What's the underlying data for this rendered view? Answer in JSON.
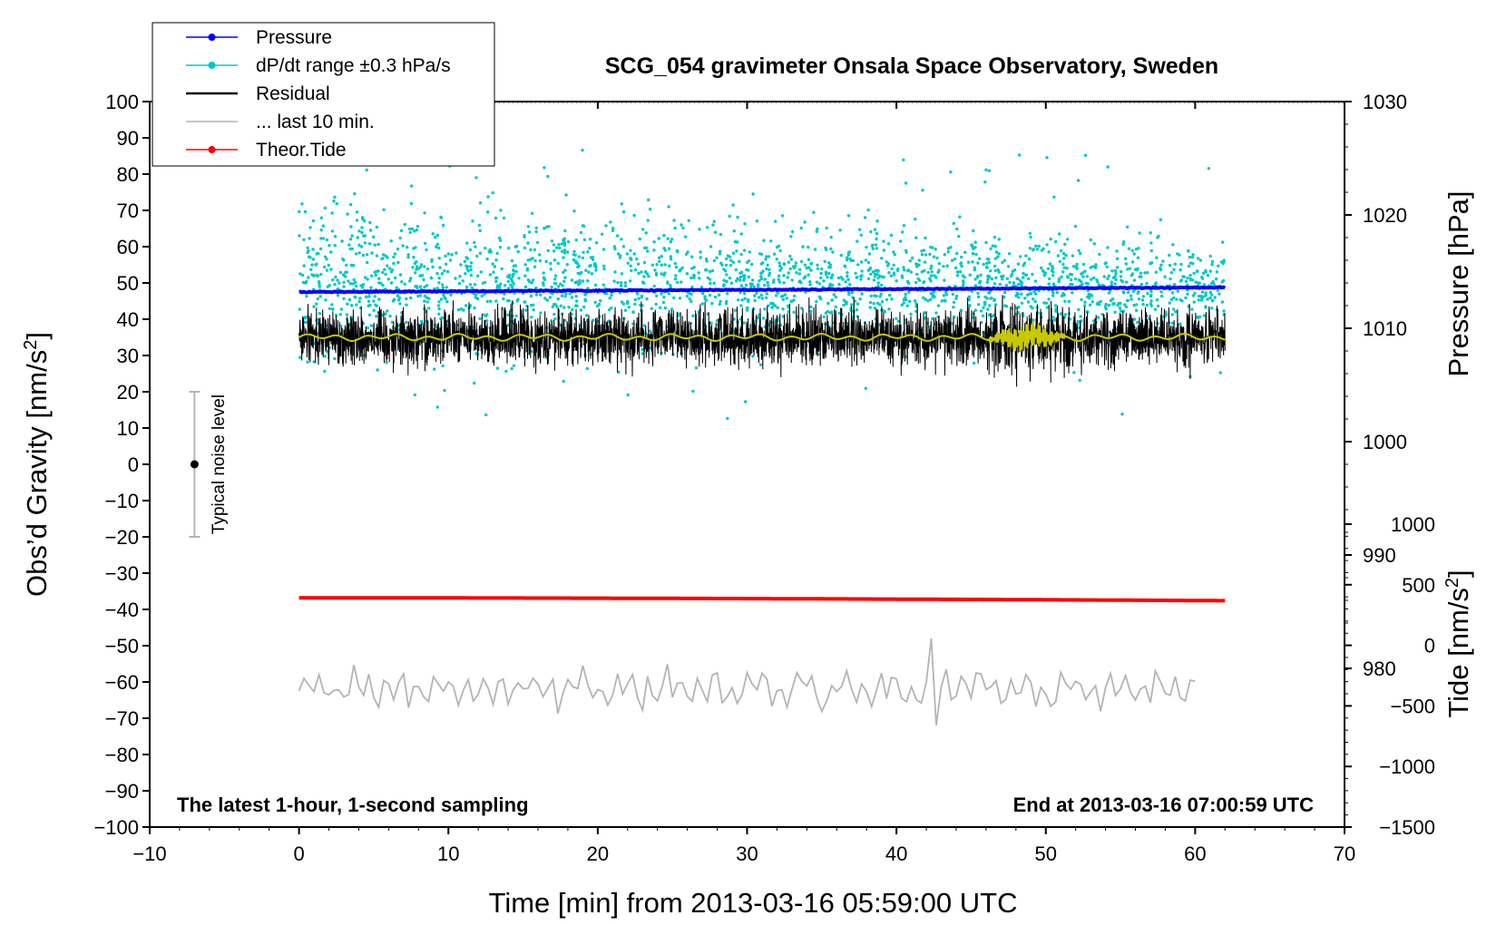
{
  "chart_data": {
    "type": "line",
    "title": "SCG_054 gravimeter Onsala Space Observatory, Sweden",
    "xlabel": "Time [min] from 2013-03-16 05:59:00 UTC",
    "ylabel_left_main": "Obs’d Gravity [nm/s",
    "ylabel_left_sup": "2",
    "ylabel_left_close": "]",
    "ylabel_right_pressure": "Pressure [hPa]",
    "ylabel_right_tide_main": "Tide [nm/s",
    "ylabel_right_tide_sup": "2",
    "ylabel_right_tide_close": "]",
    "xlim": [
      -10,
      70
    ],
    "ylim": [
      -100,
      100
    ],
    "pressure_axis": {
      "ticks": [
        1030,
        1020,
        1010,
        1000,
        990,
        980
      ],
      "ylim_equiv": [
        966,
        1030
      ]
    },
    "tide_axis": {
      "ticks": [
        1000,
        500,
        0,
        -500,
        -1000,
        -1500
      ],
      "range": [
        -1500,
        1000
      ]
    },
    "x_ticks": [
      -10,
      0,
      10,
      20,
      30,
      40,
      50,
      60,
      70
    ],
    "x_tick_labels": [
      "−10",
      "0",
      "10",
      "20",
      "30",
      "40",
      "50",
      "60",
      "70"
    ],
    "y_ticks": [
      100,
      90,
      80,
      70,
      60,
      50,
      40,
      30,
      20,
      10,
      0,
      -10,
      -20,
      -30,
      -40,
      -50,
      -60,
      -70,
      -80,
      -90,
      -100
    ],
    "y_tick_labels": [
      "100",
      "90",
      "80",
      "70",
      "60",
      "50",
      "40",
      "30",
      "20",
      "10",
      "0",
      "−10",
      "−20",
      "−30",
      "−40",
      "−50",
      "−60",
      "−70",
      "−80",
      "−90",
      "−100"
    ],
    "pressure_tick_labels": [
      "1030",
      "1020",
      "1010",
      "1000",
      "990",
      "980"
    ],
    "tide_tick_labels": [
      "1000",
      "500",
      "0",
      "−500",
      "−1000",
      "−1500"
    ],
    "annotations": {
      "left": "The latest 1-hour, 1-second sampling",
      "right": "End at 2013-03-16 07:00:59 UTC",
      "noise": "Typical noise level"
    },
    "legend": [
      {
        "label": "Pressure",
        "color": "#0000ff",
        "marker": true
      },
      {
        "label": "dP/dt range ±0.3 hPa/s",
        "color": "#00c8c8",
        "marker": true
      },
      {
        "label": "Residual",
        "color": "#000000",
        "marker": false
      },
      {
        "label": "... last 10 min.",
        "color": "#b4b4b4",
        "marker": false
      },
      {
        "label": "Theor.Tide",
        "color": "#ff0000",
        "marker": true
      }
    ],
    "series": [
      {
        "name": "Pressure",
        "axis": "pressure",
        "x_range": [
          0,
          62
        ],
        "start": 1013.2,
        "end": 1013.6,
        "color": "#0000ff"
      },
      {
        "name": "dP/dt range",
        "axis": "gravity",
        "x_range": [
          0,
          62
        ],
        "center": 50,
        "color": "#00c8c8"
      },
      {
        "name": "Residual",
        "axis": "gravity",
        "x_range": [
          0,
          62
        ],
        "center": 35,
        "color": "#000000"
      },
      {
        "name": "Residual smoothed",
        "axis": "gravity",
        "x_range": [
          0,
          62
        ],
        "center": 35,
        "color": "#c8c800"
      },
      {
        "name": "Theor.Tide",
        "axis": "gravity",
        "x_range": [
          0,
          62
        ],
        "start": -36.8,
        "end": -37.6,
        "color": "#ff0000"
      },
      {
        "name": "... last 10 min.",
        "axis": "gravity",
        "x_range": [
          0,
          60
        ],
        "center": -62,
        "color": "#b4b4b4"
      }
    ],
    "noise_bar": {
      "x": -7,
      "center": 0,
      "min": -20,
      "max": 20
    }
  }
}
